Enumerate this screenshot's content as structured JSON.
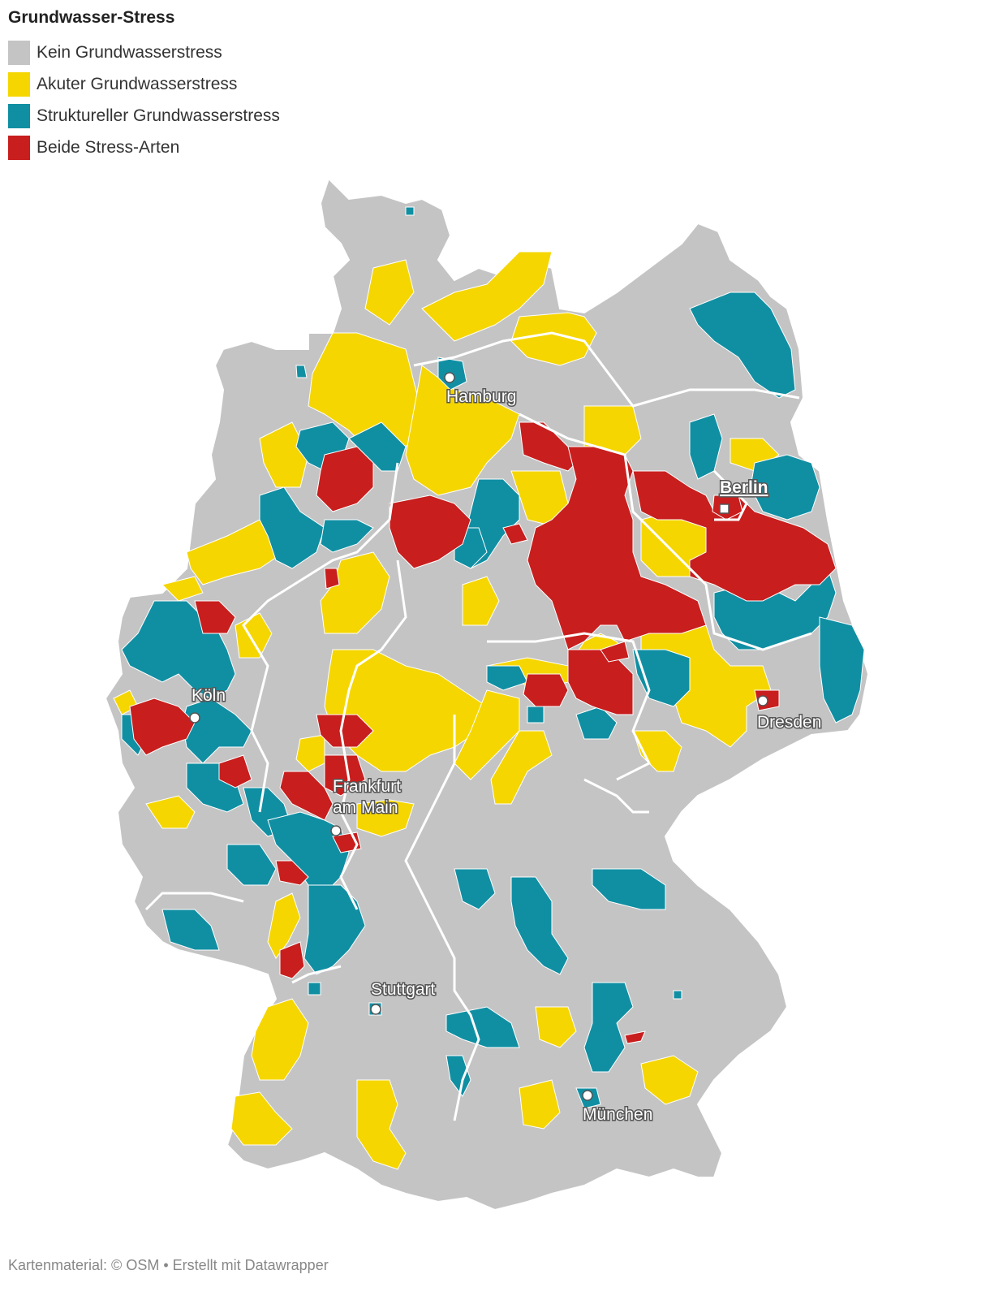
{
  "title": "Grundwasser-Stress",
  "legend": [
    {
      "label": "Kein Grundwasserstress",
      "color": "#c4c4c4"
    },
    {
      "label": "Akuter Grundwasserstress",
      "color": "#f5d600"
    },
    {
      "label": "Struktureller Grundwasserstress",
      "color": "#108fa3"
    },
    {
      "label": "Beide Stress-Arten",
      "color": "#c81e1e"
    }
  ],
  "colors": {
    "none": "#c4c4c4",
    "acute": "#f5d600",
    "structural": "#108fa3",
    "both": "#c81e1e",
    "border": "#ffffff"
  },
  "cities": {
    "hamburg": "Hamburg",
    "berlin": "Berlin",
    "koeln": "Köln",
    "dresden": "Dresden",
    "frankfurt_line1": "Frankfurt",
    "frankfurt_line2": "am Main",
    "stuttgart": "Stuttgart",
    "muenchen": "München"
  },
  "footer": {
    "map_credit": "Kartenmaterial: © OSM",
    "separator": " • ",
    "made_with": "Erstellt mit Datawrapper"
  }
}
